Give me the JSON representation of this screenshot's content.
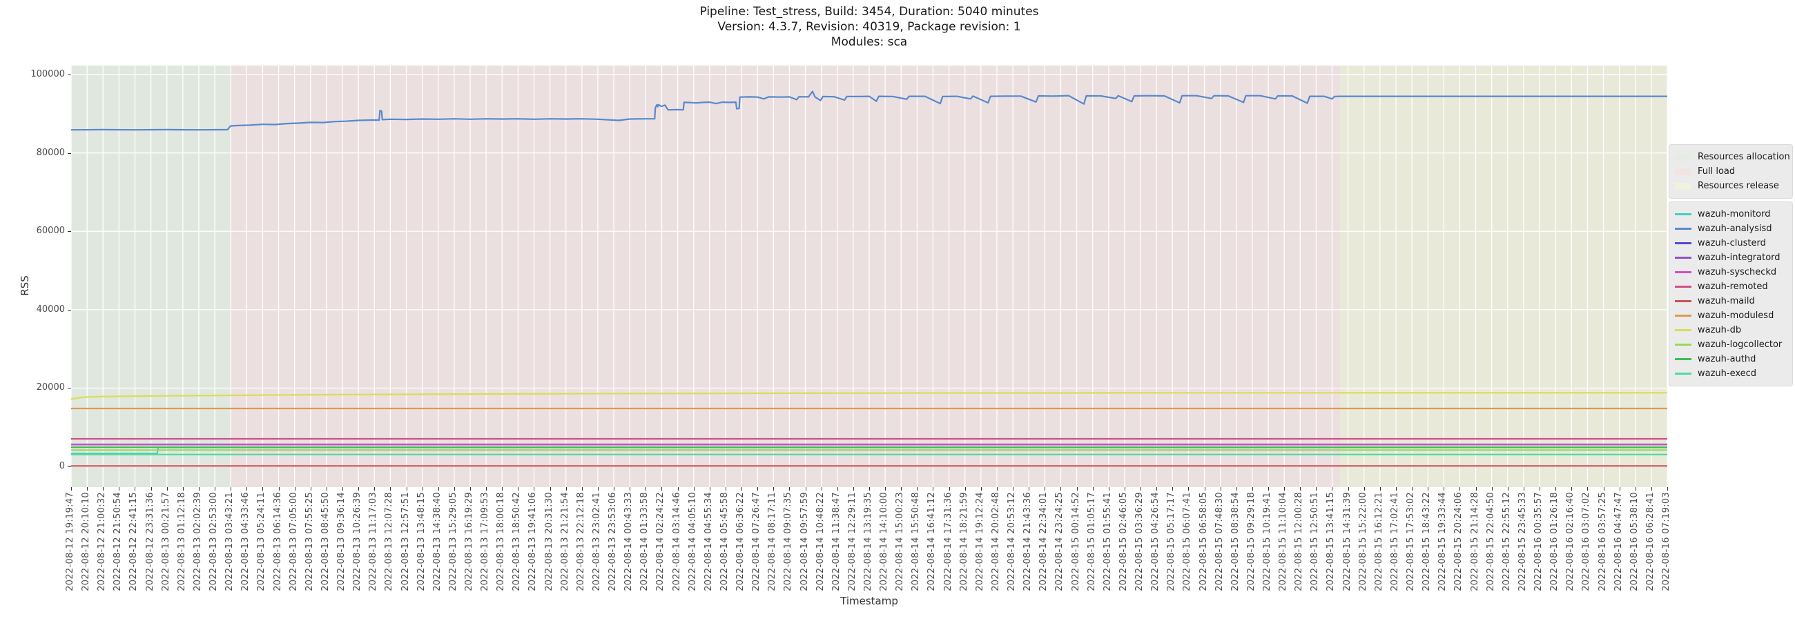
{
  "title": {
    "line1": "Pipeline: Test_stress, Build: 3454, Duration: 5040 minutes",
    "line2": "Version: 4.3.7, Revision: 40319, Package revision: 1",
    "line3": "Modules: sca"
  },
  "axes": {
    "ylabel": "RSS",
    "xlabel": "Timestamp"
  },
  "chart_data": {
    "type": "line",
    "title": "Pipeline: Test_stress, Build: 3454, Duration: 5040 minutes",
    "xlabel": "Timestamp",
    "ylabel": "RSS",
    "ylim": [
      -5270,
      102300
    ],
    "grid": true,
    "legend_position": "outside-right",
    "yticks": [
      0,
      20000,
      40000,
      60000,
      80000,
      100000
    ],
    "x_tick_labels": [
      "2022-08-12 19:19:47",
      "2022-08-12 20:10:10",
      "2022-08-12 21:00:32",
      "2022-08-12 21:50:54",
      "2022-08-12 22:41:15",
      "2022-08-12 23:31:36",
      "2022-08-13 00:21:57",
      "2022-08-13 01:12:18",
      "2022-08-13 02:02:39",
      "2022-08-13 02:53:00",
      "2022-08-13 03:43:21",
      "2022-08-13 04:33:46",
      "2022-08-13 05:24:11",
      "2022-08-13 06:14:36",
      "2022-08-13 07:05:00",
      "2022-08-13 07:55:25",
      "2022-08-13 08:45:50",
      "2022-08-13 09:36:14",
      "2022-08-13 10:26:39",
      "2022-08-13 11:17:03",
      "2022-08-13 12:07:28",
      "2022-08-13 12:57:51",
      "2022-08-13 13:48:15",
      "2022-08-13 14:38:40",
      "2022-08-13 15:29:05",
      "2022-08-13 16:19:29",
      "2022-08-13 17:09:53",
      "2022-08-13 18:00:18",
      "2022-08-13 18:50:42",
      "2022-08-13 19:41:06",
      "2022-08-13 20:31:30",
      "2022-08-13 21:21:54",
      "2022-08-13 22:12:18",
      "2022-08-13 23:02:41",
      "2022-08-13 23:53:06",
      "2022-08-14 00:43:33",
      "2022-08-14 01:33:58",
      "2022-08-14 02:24:22",
      "2022-08-14 03:14:46",
      "2022-08-14 04:05:10",
      "2022-08-14 04:55:34",
      "2022-08-14 05:45:58",
      "2022-08-14 06:36:22",
      "2022-08-14 07:26:47",
      "2022-08-14 08:17:11",
      "2022-08-14 09:07:35",
      "2022-08-14 09:57:59",
      "2022-08-14 10:48:22",
      "2022-08-14 11:38:47",
      "2022-08-14 12:29:11",
      "2022-08-14 13:19:35",
      "2022-08-14 14:10:00",
      "2022-08-14 15:00:23",
      "2022-08-14 15:50:48",
      "2022-08-14 16:41:12",
      "2022-08-14 17:31:36",
      "2022-08-14 18:21:59",
      "2022-08-14 19:12:24",
      "2022-08-14 20:02:48",
      "2022-08-14 20:53:12",
      "2022-08-14 21:43:36",
      "2022-08-14 22:34:01",
      "2022-08-14 23:24:25",
      "2022-08-15 00:14:52",
      "2022-08-15 01:05:17",
      "2022-08-15 01:55:41",
      "2022-08-15 02:46:05",
      "2022-08-15 03:36:29",
      "2022-08-15 04:26:54",
      "2022-08-15 05:17:17",
      "2022-08-15 06:07:41",
      "2022-08-15 06:58:05",
      "2022-08-15 07:48:30",
      "2022-08-15 08:38:54",
      "2022-08-15 09:29:18",
      "2022-08-15 10:19:41",
      "2022-08-15 11:10:04",
      "2022-08-15 12:00:28",
      "2022-08-15 12:50:51",
      "2022-08-15 13:41:15",
      "2022-08-15 14:31:39",
      "2022-08-15 15:22:00",
      "2022-08-15 16:12:21",
      "2022-08-15 17:02:41",
      "2022-08-15 17:53:02",
      "2022-08-15 18:43:22",
      "2022-08-15 19:33:44",
      "2022-08-15 20:24:06",
      "2022-08-15 21:14:28",
      "2022-08-15 22:04:50",
      "2022-08-15 22:55:12",
      "2022-08-15 23:45:33",
      "2022-08-16 00:35:57",
      "2022-08-16 01:26:18",
      "2022-08-16 02:16:40",
      "2022-08-16 03:07:02",
      "2022-08-16 03:57:25",
      "2022-08-16 04:47:47",
      "2022-08-16 05:38:10",
      "2022-08-16 06:28:41",
      "2022-08-16 07:19:03"
    ],
    "regions": [
      {
        "label": "Resources allocation",
        "color": "#e0e7df",
        "legend_color": "#e6ece4",
        "x0": 0.0,
        "x1": 0.0999
      },
      {
        "label": "Full load",
        "color": "#ecdfdf",
        "legend_color": "#f3e4e4",
        "x0": 0.0999,
        "x1": 0.795
      },
      {
        "label": "Resources release",
        "color": "#e9e9d9",
        "legend_color": "#f1f1df",
        "x0": 0.795,
        "x1": 1.0
      }
    ],
    "series": [
      {
        "name": "wazuh-monitord",
        "color": "#40d0c8",
        "points": [
          [
            0,
            3320
          ],
          [
            0.054,
            3320
          ],
          [
            0.0545,
            4860
          ],
          [
            1,
            4860
          ]
        ]
      },
      {
        "name": "wazuh-analysisd",
        "color": "#5689cf",
        "points": [
          [
            0,
            85900
          ],
          [
            0.02,
            85950
          ],
          [
            0.04,
            85900
          ],
          [
            0.06,
            85950
          ],
          [
            0.08,
            85900
          ],
          [
            0.098,
            85950
          ],
          [
            0.0999,
            86900
          ],
          [
            0.105,
            87000
          ],
          [
            0.112,
            87100
          ],
          [
            0.12,
            87300
          ],
          [
            0.128,
            87250
          ],
          [
            0.135,
            87500
          ],
          [
            0.142,
            87600
          ],
          [
            0.15,
            87800
          ],
          [
            0.158,
            87750
          ],
          [
            0.165,
            88000
          ],
          [
            0.172,
            88100
          ],
          [
            0.18,
            88300
          ],
          [
            0.188,
            88400
          ],
          [
            0.193,
            88400
          ],
          [
            0.1935,
            90800
          ],
          [
            0.1945,
            90700
          ],
          [
            0.195,
            88500
          ],
          [
            0.2,
            88600
          ],
          [
            0.21,
            88550
          ],
          [
            0.22,
            88650
          ],
          [
            0.23,
            88600
          ],
          [
            0.24,
            88700
          ],
          [
            0.25,
            88600
          ],
          [
            0.26,
            88700
          ],
          [
            0.27,
            88650
          ],
          [
            0.28,
            88700
          ],
          [
            0.29,
            88600
          ],
          [
            0.3,
            88700
          ],
          [
            0.31,
            88650
          ],
          [
            0.32,
            88700
          ],
          [
            0.33,
            88600
          ],
          [
            0.343,
            88300
          ],
          [
            0.35,
            88650
          ],
          [
            0.36,
            88700
          ],
          [
            0.3656,
            88700
          ],
          [
            0.366,
            91500
          ],
          [
            0.367,
            92300
          ],
          [
            0.3675,
            91800
          ],
          [
            0.368,
            92300
          ],
          [
            0.37,
            91900
          ],
          [
            0.372,
            92200
          ],
          [
            0.374,
            91000
          ],
          [
            0.38,
            91050
          ],
          [
            0.3835,
            91000
          ],
          [
            0.384,
            92900
          ],
          [
            0.388,
            92850
          ],
          [
            0.392,
            92750
          ],
          [
            0.396,
            92900
          ],
          [
            0.4,
            92950
          ],
          [
            0.404,
            92600
          ],
          [
            0.408,
            92950
          ],
          [
            0.412,
            92900
          ],
          [
            0.4165,
            92950
          ],
          [
            0.417,
            91300
          ],
          [
            0.4185,
            91350
          ],
          [
            0.419,
            94250
          ],
          [
            0.425,
            94300
          ],
          [
            0.43,
            94250
          ],
          [
            0.434,
            93800
          ],
          [
            0.437,
            94300
          ],
          [
            0.445,
            94250
          ],
          [
            0.45,
            94300
          ],
          [
            0.4545,
            93600
          ],
          [
            0.456,
            94350
          ],
          [
            0.462,
            94300
          ],
          [
            0.4645,
            95700
          ],
          [
            0.466,
            94300
          ],
          [
            0.4695,
            93400
          ],
          [
            0.471,
            94400
          ],
          [
            0.478,
            94350
          ],
          [
            0.4845,
            93500
          ],
          [
            0.486,
            94400
          ],
          [
            0.495,
            94400
          ],
          [
            0.5,
            94450
          ],
          [
            0.5045,
            93200
          ],
          [
            0.506,
            94450
          ],
          [
            0.515,
            94400
          ],
          [
            0.5235,
            93700
          ],
          [
            0.525,
            94450
          ],
          [
            0.535,
            94450
          ],
          [
            0.5445,
            92600
          ],
          [
            0.546,
            94400
          ],
          [
            0.555,
            94450
          ],
          [
            0.5635,
            93800
          ],
          [
            0.565,
            94500
          ],
          [
            0.5745,
            92800
          ],
          [
            0.576,
            94450
          ],
          [
            0.585,
            94500
          ],
          [
            0.595,
            94500
          ],
          [
            0.6045,
            93000
          ],
          [
            0.606,
            94550
          ],
          [
            0.615,
            94500
          ],
          [
            0.625,
            94600
          ],
          [
            0.6345,
            92500
          ],
          [
            0.636,
            94550
          ],
          [
            0.645,
            94550
          ],
          [
            0.6545,
            93900
          ],
          [
            0.656,
            94600
          ],
          [
            0.6645,
            93100
          ],
          [
            0.666,
            94550
          ],
          [
            0.675,
            94600
          ],
          [
            0.685,
            94550
          ],
          [
            0.6945,
            92800
          ],
          [
            0.696,
            94600
          ],
          [
            0.705,
            94600
          ],
          [
            0.7145,
            93900
          ],
          [
            0.716,
            94600
          ],
          [
            0.725,
            94550
          ],
          [
            0.7345,
            92900
          ],
          [
            0.736,
            94600
          ],
          [
            0.745,
            94600
          ],
          [
            0.7545,
            93800
          ],
          [
            0.756,
            94550
          ],
          [
            0.765,
            94550
          ],
          [
            0.7745,
            92700
          ],
          [
            0.776,
            94450
          ],
          [
            0.785,
            94450
          ],
          [
            0.79,
            93800
          ],
          [
            0.7915,
            94400
          ],
          [
            0.795,
            94450
          ],
          [
            0.85,
            94450
          ],
          [
            0.95,
            94450
          ],
          [
            1,
            94450
          ]
        ]
      },
      {
        "name": "wazuh-clusterd",
        "color": "#4c4cd0",
        "points": [
          [
            0,
            5640
          ],
          [
            1,
            5640
          ]
        ]
      },
      {
        "name": "wazuh-integratord",
        "color": "#8f4fd0",
        "points": [
          [
            0,
            5620
          ],
          [
            1,
            5620
          ]
        ]
      },
      {
        "name": "wazuh-syscheckd",
        "color": "#d04fca",
        "points": [
          [
            0,
            5600
          ],
          [
            1,
            5600
          ]
        ]
      },
      {
        "name": "wazuh-remoted",
        "color": "#d04f88",
        "points": [
          [
            0,
            7050
          ],
          [
            1,
            7050
          ]
        ]
      },
      {
        "name": "wazuh-maild",
        "color": "#d05050",
        "points": [
          [
            0,
            130
          ],
          [
            1,
            130
          ]
        ]
      },
      {
        "name": "wazuh-modulesd",
        "color": "#dc9a50",
        "points": [
          [
            0,
            14800
          ],
          [
            1,
            14800
          ]
        ]
      },
      {
        "name": "wazuh-db",
        "color": "#dcdc55",
        "points": [
          [
            0,
            17200
          ],
          [
            0.005,
            17550
          ],
          [
            0.01,
            17700
          ],
          [
            0.02,
            17850
          ],
          [
            0.04,
            17950
          ],
          [
            0.07,
            18050
          ],
          [
            0.1,
            18150
          ],
          [
            0.15,
            18300
          ],
          [
            0.2,
            18400
          ],
          [
            0.25,
            18480
          ],
          [
            0.3,
            18550
          ],
          [
            0.35,
            18600
          ],
          [
            0.4,
            18650
          ],
          [
            0.5,
            18720
          ],
          [
            0.6,
            18760
          ],
          [
            0.7,
            18790
          ],
          [
            0.8,
            18800
          ],
          [
            0.9,
            18800
          ],
          [
            1,
            18800
          ]
        ]
      },
      {
        "name": "wazuh-logcollector",
        "color": "#98d955",
        "points": [
          [
            0,
            4180
          ],
          [
            1,
            4180
          ]
        ]
      },
      {
        "name": "wazuh-authd",
        "color": "#3dbc50",
        "points": [
          [
            0,
            4900
          ],
          [
            1,
            4900
          ]
        ]
      },
      {
        "name": "wazuh-execd",
        "color": "#4fd99c",
        "points": [
          [
            0,
            3060
          ],
          [
            1,
            3060
          ]
        ]
      }
    ]
  }
}
